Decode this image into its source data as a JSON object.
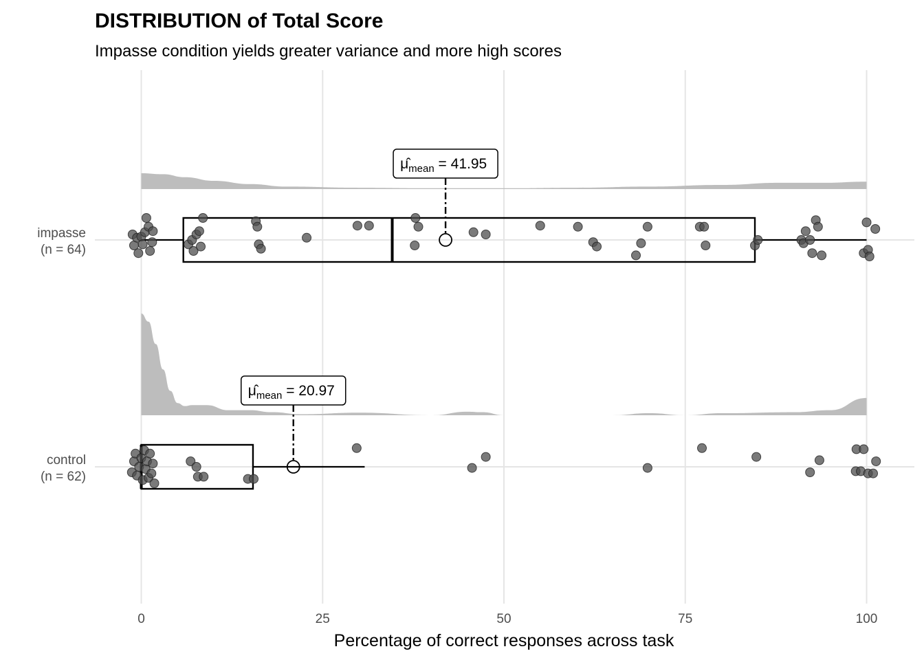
{
  "chart_data": {
    "type": "boxplot",
    "title": "DISTRIBUTION of Total Score",
    "subtitle": "Impasse condition yields greater variance and more high scores",
    "xlabel": "Percentage of correct responses across task",
    "xlim": [
      -5,
      102
    ],
    "x_ticks": [
      0,
      25,
      50,
      75,
      100
    ],
    "x_tick_labels": [
      "0",
      "25",
      "50",
      "75",
      "100"
    ],
    "grid": true,
    "colors": {
      "points": "#4d4d4d",
      "density": "#bdbdbd",
      "box": "#000000",
      "grid": "#e5e5e5"
    },
    "groups": [
      {
        "name": "impasse",
        "n_label": "(n = 64)",
        "box": {
          "min": 0,
          "q1": 5.8,
          "median": 34.6,
          "q3": 84.6,
          "max": 100
        },
        "mean": 41.95,
        "mean_label": {
          "symbol": "μ̂",
          "subscript": "mean",
          "value": "= 41.95"
        },
        "density": [
          [
            0,
            0.96
          ],
          [
            3,
            0.9
          ],
          [
            6,
            0.72
          ],
          [
            10,
            0.5
          ],
          [
            15,
            0.3
          ],
          [
            20,
            0.15
          ],
          [
            30,
            0.08
          ],
          [
            40,
            0.05
          ],
          [
            50,
            0.05
          ],
          [
            60,
            0.08
          ],
          [
            70,
            0.15
          ],
          [
            80,
            0.25
          ],
          [
            88,
            0.38
          ],
          [
            94,
            0.38
          ],
          [
            100,
            0.45
          ]
        ],
        "points": [
          [
            -1.2,
            0.05
          ],
          [
            -1.0,
            -0.05
          ],
          [
            -0.6,
            0.02
          ],
          [
            -0.4,
            -0.12
          ],
          [
            0,
            0.03
          ],
          [
            0.2,
            -0.04
          ],
          [
            0.5,
            0.07
          ],
          [
            0.7,
            0.2
          ],
          [
            1.0,
            0.12
          ],
          [
            1.2,
            -0.1
          ],
          [
            1.5,
            -0.02
          ],
          [
            1.6,
            0.08
          ],
          [
            6.5,
            -0.04
          ],
          [
            7.0,
            0.0
          ],
          [
            7.2,
            -0.1
          ],
          [
            7.6,
            0.05
          ],
          [
            8.0,
            0.08
          ],
          [
            8.2,
            -0.06
          ],
          [
            8.5,
            0.2
          ],
          [
            15.8,
            0.17
          ],
          [
            16.0,
            0.12
          ],
          [
            16.2,
            -0.04
          ],
          [
            16.5,
            -0.08
          ],
          [
            22.8,
            0.02
          ],
          [
            29.8,
            0.13
          ],
          [
            31.4,
            0.13
          ],
          [
            37.7,
            -0.05
          ],
          [
            37.8,
            0.2
          ],
          [
            38.2,
            0.12
          ],
          [
            45.8,
            0.07
          ],
          [
            47.5,
            0.05
          ],
          [
            55.0,
            0.13
          ],
          [
            60.2,
            0.12
          ],
          [
            62.3,
            -0.02
          ],
          [
            62.8,
            -0.06
          ],
          [
            68.2,
            -0.14
          ],
          [
            68.9,
            -0.03
          ],
          [
            69.8,
            0.12
          ],
          [
            77.0,
            0.12
          ],
          [
            77.6,
            0.12
          ],
          [
            77.8,
            -0.05
          ],
          [
            84.6,
            -0.05
          ],
          [
            85.0,
            0.0
          ],
          [
            91.0,
            0.0
          ],
          [
            91.3,
            -0.03
          ],
          [
            91.6,
            0.08
          ],
          [
            92.2,
            0.0
          ],
          [
            92.5,
            -0.12
          ],
          [
            93.0,
            0.18
          ],
          [
            93.3,
            0.12
          ],
          [
            93.8,
            -0.14
          ],
          [
            99.6,
            -0.12
          ],
          [
            100.0,
            0.16
          ],
          [
            100.2,
            -0.09
          ],
          [
            100.4,
            -0.15
          ],
          [
            101.2,
            0.1
          ]
        ]
      },
      {
        "name": "control",
        "n_label": "(n = 62)",
        "box": {
          "min": 0,
          "q1": 0,
          "median": 0,
          "q3": 15.4,
          "max": 30.8
        },
        "mean": 20.97,
        "mean_label": {
          "symbol": "μ̂",
          "subscript": "mean",
          "value": "= 20.97"
        },
        "density": [
          [
            0,
            1.0
          ],
          [
            1,
            0.92
          ],
          [
            2,
            0.7
          ],
          [
            3,
            0.45
          ],
          [
            4,
            0.24
          ],
          [
            5,
            0.12
          ],
          [
            6,
            0.09
          ],
          [
            7,
            0.1
          ],
          [
            9,
            0.1
          ],
          [
            12,
            0.05
          ],
          [
            15,
            0.05
          ],
          [
            18,
            0.03
          ],
          [
            22,
            0.01
          ],
          [
            30,
            0.025
          ],
          [
            40,
            0.0
          ],
          [
            45,
            0.035
          ],
          [
            47,
            0.03
          ],
          [
            50,
            0.0
          ],
          [
            55,
            0.0
          ],
          [
            65,
            0.0
          ],
          [
            70,
            0.02
          ],
          [
            75,
            0.0
          ],
          [
            80,
            0.02
          ],
          [
            90,
            0.03
          ],
          [
            95,
            0.05
          ],
          [
            100,
            0.17
          ]
        ],
        "points": [
          [
            -1.3,
            -0.05
          ],
          [
            -1.0,
            0.05
          ],
          [
            -0.8,
            0.12
          ],
          [
            -0.6,
            -0.08
          ],
          [
            -0.3,
            0.0
          ],
          [
            0,
            0.08
          ],
          [
            0.2,
            -0.12
          ],
          [
            0.4,
            0.15
          ],
          [
            0.6,
            -0.02
          ],
          [
            0.8,
            0.05
          ],
          [
            1.0,
            -0.1
          ],
          [
            1.2,
            0.12
          ],
          [
            1.4,
            -0.06
          ],
          [
            1.6,
            0.03
          ],
          [
            1.8,
            -0.15
          ],
          [
            6.8,
            0.05
          ],
          [
            7.6,
            0.0
          ],
          [
            7.8,
            -0.09
          ],
          [
            8.6,
            -0.09
          ],
          [
            14.7,
            -0.11
          ],
          [
            15.5,
            -0.11
          ],
          [
            29.7,
            0.17
          ],
          [
            45.6,
            -0.01
          ],
          [
            47.5,
            0.09
          ],
          [
            69.8,
            -0.01
          ],
          [
            77.3,
            0.17
          ],
          [
            84.8,
            0.09
          ],
          [
            92.2,
            -0.05
          ],
          [
            93.5,
            0.06
          ],
          [
            98.5,
            -0.04
          ],
          [
            98.6,
            0.16
          ],
          [
            99.2,
            -0.04
          ],
          [
            99.6,
            0.16
          ],
          [
            100.2,
            -0.06
          ],
          [
            100.9,
            -0.06
          ],
          [
            101.3,
            0.05
          ]
        ]
      }
    ]
  }
}
